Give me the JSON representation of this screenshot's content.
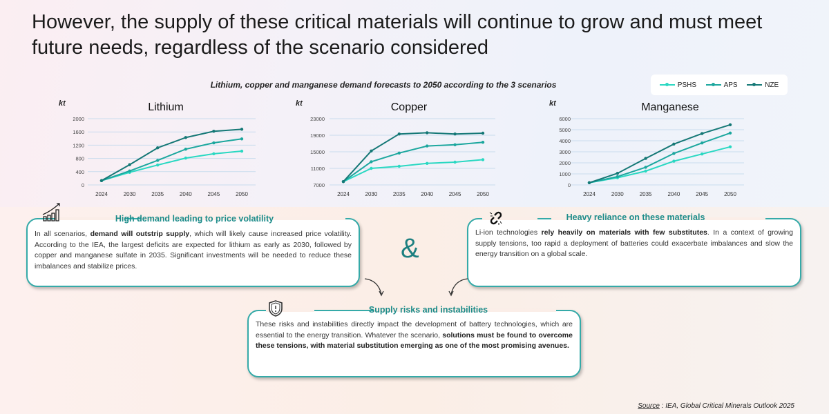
{
  "title": "However, the supply of these critical materials will continue to grow and must meet future needs, regardless of the scenario considered",
  "subtitle": "Lithium, copper and manganese demand forecasts to 2050 according to the 3 scenarios",
  "colors": {
    "PSHS": "#2ad8c2",
    "APS": "#1ca79e",
    "NZE": "#157876",
    "accent": "#1d8c8a"
  },
  "legend": [
    "PSHS",
    "APS",
    "NZE"
  ],
  "chart_data": [
    {
      "type": "line",
      "title": "Lithium",
      "ylabel": "kt",
      "categories": [
        "2024",
        "2030",
        "2035",
        "2040",
        "2045",
        "2050"
      ],
      "ylim": [
        0,
        2000
      ],
      "yticks": [
        "0",
        "400",
        "800",
        "1200",
        "1600",
        "2000"
      ],
      "grid": true,
      "legend": "top-right",
      "series": [
        {
          "name": "PSHS",
          "values": [
            130,
            380,
            600,
            810,
            940,
            1020
          ]
        },
        {
          "name": "APS",
          "values": [
            130,
            420,
            740,
            1080,
            1270,
            1390
          ]
        },
        {
          "name": "NZE",
          "values": [
            130,
            610,
            1120,
            1430,
            1620,
            1680
          ]
        }
      ]
    },
    {
      "type": "line",
      "title": "Copper",
      "ylabel": "kt",
      "categories": [
        "2024",
        "2030",
        "2035",
        "2040",
        "2045",
        "2050"
      ],
      "ylim": [
        7000,
        23000
      ],
      "yticks": [
        "7000",
        "11000",
        "15000",
        "19000",
        "23000"
      ],
      "grid": true,
      "series": [
        {
          "name": "PSHS",
          "values": [
            7800,
            11000,
            11500,
            12200,
            12500,
            13100
          ]
        },
        {
          "name": "APS",
          "values": [
            7800,
            12600,
            14700,
            16400,
            16700,
            17300
          ]
        },
        {
          "name": "NZE",
          "values": [
            7800,
            15200,
            19300,
            19600,
            19300,
            19500
          ]
        }
      ]
    },
    {
      "type": "line",
      "title": "Manganese",
      "ylabel": "kt",
      "categories": [
        "2024",
        "2030",
        "2035",
        "2040",
        "2045",
        "2050"
      ],
      "ylim": [
        0,
        6000
      ],
      "yticks": [
        "0",
        "1000",
        "2000",
        "3000",
        "4000",
        "5000",
        "6000"
      ],
      "grid": true,
      "series": [
        {
          "name": "PSHS",
          "values": [
            200,
            650,
            1250,
            2150,
            2800,
            3450
          ]
        },
        {
          "name": "APS",
          "values": [
            200,
            750,
            1600,
            2850,
            3800,
            4700
          ]
        },
        {
          "name": "NZE",
          "values": [
            200,
            1050,
            2400,
            3700,
            4650,
            5450
          ]
        }
      ]
    }
  ],
  "boxes": {
    "demand": {
      "title": "High demand leading to price volatility",
      "icon": "growth-chart-icon",
      "segments": [
        {
          "t": "In all scenarios, "
        },
        {
          "t": "demand will outstrip supply",
          "b": true
        },
        {
          "t": ", which will likely cause increased price volatility. According to the IEA, the largest deficits are expected for lithium as early as 2030, followed by copper and manganese sulfate in 2035. Significant investments will be needed to reduce these imbalances and stabilize prices."
        }
      ]
    },
    "reliance": {
      "title": "Heavy reliance on these materials",
      "icon": "broken-link-icon",
      "segments": [
        {
          "t": "Li-ion technologies "
        },
        {
          "t": "rely heavily on materials with few substitutes",
          "b": true
        },
        {
          "t": ". In a context of growing supply tensions, too rapid a deployment of batteries could exacerbate imbalances and slow the energy transition on a global scale."
        }
      ]
    },
    "risks": {
      "title": "Supply risks and instabilities",
      "icon": "shield-warning-icon",
      "segments": [
        {
          "t": "These risks and instabilities directly impact the development of battery technologies, which are essential to the energy transition. Whatever the scenario, "
        },
        {
          "t": "solutions must be found to overcome these tensions, with material substitution emerging as one of the most promising avenues.",
          "b": true
        }
      ]
    }
  },
  "ampersand": "&",
  "source": {
    "label": "Source",
    "text": " : IEA, Global Critical Minerals Outlook 2025"
  }
}
